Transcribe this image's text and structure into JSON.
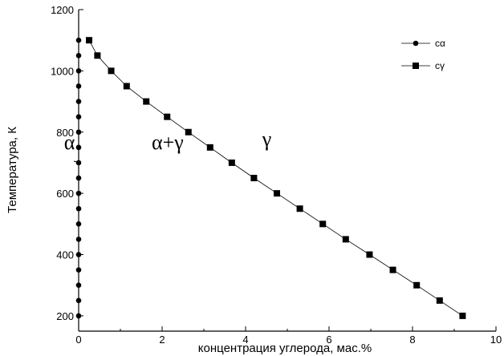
{
  "chart_data": {
    "type": "scatter",
    "title": "",
    "xlabel": "концентрация углерода, мас.%",
    "ylabel": "Температура, К",
    "xlim": [
      0,
      10
    ],
    "ylim": [
      150,
      1200
    ],
    "xticks": [
      0,
      2,
      4,
      6,
      8,
      10
    ],
    "yticks": [
      200,
      400,
      600,
      800,
      1000,
      1200
    ],
    "grid": false,
    "legend_position": "top-right",
    "series": [
      {
        "name": "cα",
        "marker": "circle",
        "line": false,
        "x": [
          0,
          0,
          0,
          0,
          0,
          0,
          0,
          0,
          0,
          0,
          0,
          0,
          0,
          0,
          0,
          0,
          0,
          0,
          0
        ],
        "y": [
          1100,
          1050,
          1000,
          950,
          900,
          850,
          800,
          750,
          700,
          650,
          600,
          550,
          500,
          450,
          400,
          350,
          300,
          250,
          200
        ]
      },
      {
        "name": "cγ",
        "marker": "square",
        "line": true,
        "x": [
          0.25,
          0.45,
          0.78,
          1.15,
          1.62,
          2.12,
          2.63,
          3.15,
          3.67,
          4.2,
          4.75,
          5.3,
          5.85,
          6.4,
          6.97,
          7.53,
          8.1,
          8.65,
          9.2
        ],
        "y": [
          1100,
          1050,
          1000,
          950,
          900,
          850,
          800,
          750,
          700,
          650,
          600,
          550,
          500,
          450,
          400,
          350,
          300,
          250,
          200
        ]
      }
    ],
    "annotations": [
      {
        "text": "α",
        "x": -0.35,
        "y": 745
      },
      {
        "text": "α+γ",
        "x": 1.75,
        "y": 745
      },
      {
        "text": "γ",
        "x": 4.4,
        "y": 755
      }
    ]
  }
}
